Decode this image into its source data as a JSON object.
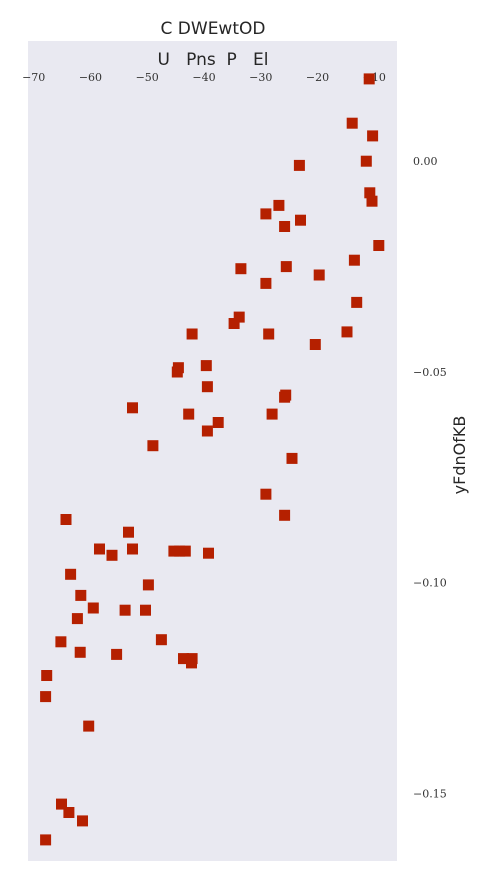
{
  "chart_data": {
    "type": "scatter",
    "title": "C DWEwtOD",
    "subtitle": "U   Pns  P   El",
    "xlabel": "",
    "ylabel": "yFdnOfKB",
    "xlim": [
      -71,
      -6
    ],
    "ylim": [
      -0.166,
      0.0285
    ],
    "x_ticks": [
      -70,
      -60,
      -50,
      -40,
      -30,
      -20,
      -10
    ],
    "x_tick_labels": [
      "−70",
      "−60",
      "−50",
      "−40",
      "−30",
      "−20",
      "−10"
    ],
    "y_ticks": [
      0.0,
      -0.05,
      -0.1,
      -0.15
    ],
    "y_tick_labels": [
      "0.00",
      "−0.05",
      "−0.10",
      "−0.15"
    ],
    "x_axis_position": "top",
    "y_axis_position": "right",
    "grid": false,
    "legend": "none",
    "colors": {
      "marker": "#b52000",
      "plot_background": "#e9e9f1"
    },
    "marker": "square",
    "series": [
      {
        "points": [
          [
            -10.9,
            0.0195
          ],
          [
            -13.9,
            0.009
          ],
          [
            -10.3,
            0.006
          ],
          [
            -11.4,
            0.0
          ],
          [
            -10.8,
            -0.0075
          ],
          [
            -10.4,
            -0.0095
          ],
          [
            -23.2,
            -0.001
          ],
          [
            -26.8,
            -0.0105
          ],
          [
            -29.1,
            -0.0125
          ],
          [
            -23.0,
            -0.014
          ],
          [
            -25.8,
            -0.0155
          ],
          [
            -9.2,
            -0.02
          ],
          [
            -13.5,
            -0.0235
          ],
          [
            -25.5,
            -0.025
          ],
          [
            -33.5,
            -0.0255
          ],
          [
            -19.7,
            -0.027
          ],
          [
            -29.1,
            -0.029
          ],
          [
            -13.1,
            -0.0335
          ],
          [
            -33.8,
            -0.037
          ],
          [
            -34.7,
            -0.0385
          ],
          [
            -28.6,
            -0.041
          ],
          [
            -42.1,
            -0.041
          ],
          [
            -14.8,
            -0.0405
          ],
          [
            -20.4,
            -0.0435
          ],
          [
            -39.6,
            -0.0485
          ],
          [
            -44.5,
            -0.049
          ],
          [
            -44.7,
            -0.05
          ],
          [
            -39.4,
            -0.0535
          ],
          [
            -25.6,
            -0.0555
          ],
          [
            -25.8,
            -0.056
          ],
          [
            -52.6,
            -0.0585
          ],
          [
            -42.7,
            -0.06
          ],
          [
            -28.0,
            -0.06
          ],
          [
            -37.5,
            -0.062
          ],
          [
            -39.4,
            -0.064
          ],
          [
            -49.0,
            -0.0675
          ],
          [
            -24.5,
            -0.0705
          ],
          [
            -29.1,
            -0.079
          ],
          [
            -25.8,
            -0.084
          ],
          [
            -64.3,
            -0.085
          ],
          [
            -53.3,
            -0.088
          ],
          [
            -58.4,
            -0.092
          ],
          [
            -52.6,
            -0.092
          ],
          [
            -45.3,
            -0.0925
          ],
          [
            -44.3,
            -0.0925
          ],
          [
            -43.3,
            -0.0925
          ],
          [
            -39.2,
            -0.093
          ],
          [
            -56.2,
            -0.0935
          ],
          [
            -63.5,
            -0.098
          ],
          [
            -49.8,
            -0.1005
          ],
          [
            -61.7,
            -0.103
          ],
          [
            -59.5,
            -0.106
          ],
          [
            -53.9,
            -0.1065
          ],
          [
            -50.3,
            -0.1065
          ],
          [
            -62.3,
            -0.1085
          ],
          [
            -47.5,
            -0.1135
          ],
          [
            -65.2,
            -0.114
          ],
          [
            -61.8,
            -0.1165
          ],
          [
            -55.4,
            -0.117
          ],
          [
            -43.6,
            -0.118
          ],
          [
            -42.1,
            -0.118
          ],
          [
            -42.2,
            -0.119
          ],
          [
            -67.7,
            -0.122
          ],
          [
            -67.9,
            -0.127
          ],
          [
            -60.3,
            -0.134
          ],
          [
            -65.1,
            -0.1525
          ],
          [
            -63.8,
            -0.1545
          ],
          [
            -61.4,
            -0.1565
          ],
          [
            -67.9,
            -0.161
          ]
        ]
      }
    ]
  }
}
